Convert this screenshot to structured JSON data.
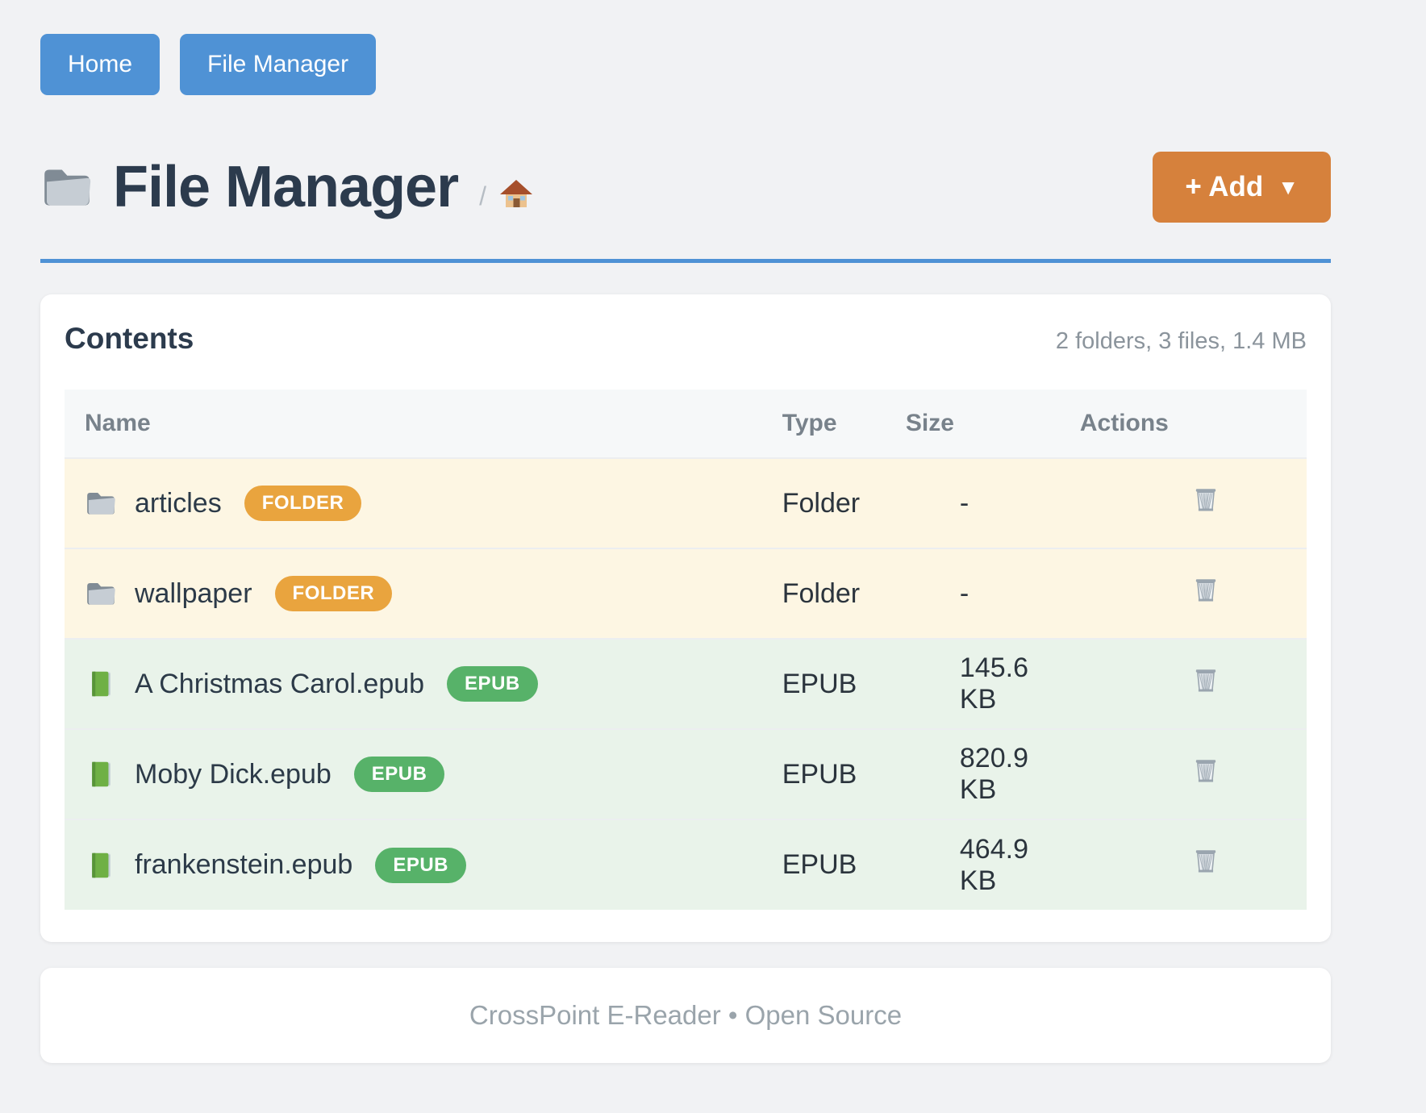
{
  "nav": {
    "home_label": "Home",
    "file_manager_label": "File Manager"
  },
  "header": {
    "title": "File Manager",
    "separator": "/",
    "add_label": "+ Add",
    "add_caret": "▼"
  },
  "contents": {
    "heading": "Contents",
    "summary": "2 folders, 3 files, 1.4 MB",
    "columns": [
      "Name",
      "Type",
      "Size",
      "Actions"
    ],
    "rows": [
      {
        "name": "articles",
        "kind": "folder",
        "badge": "FOLDER",
        "type": "Folder",
        "size": "-"
      },
      {
        "name": "wallpaper",
        "kind": "folder",
        "badge": "FOLDER",
        "type": "Folder",
        "size": "-"
      },
      {
        "name": "A Christmas Carol.epub",
        "kind": "epub",
        "badge": "EPUB",
        "type": "EPUB",
        "size": "145.6 KB"
      },
      {
        "name": "Moby Dick.epub",
        "kind": "epub",
        "badge": "EPUB",
        "type": "EPUB",
        "size": "820.9 KB"
      },
      {
        "name": "frankenstein.epub",
        "kind": "epub",
        "badge": "EPUB",
        "type": "EPUB",
        "size": "464.9 KB"
      }
    ]
  },
  "footer": {
    "text": "CrossPoint E-Reader • Open Source"
  },
  "colors": {
    "primary_blue": "#4f92d5",
    "accent_orange": "#d6813c",
    "badge_orange": "#e9a43e",
    "badge_green": "#57b269",
    "row_folder_bg": "#fdf6e3",
    "row_epub_bg": "#e9f3ea"
  }
}
